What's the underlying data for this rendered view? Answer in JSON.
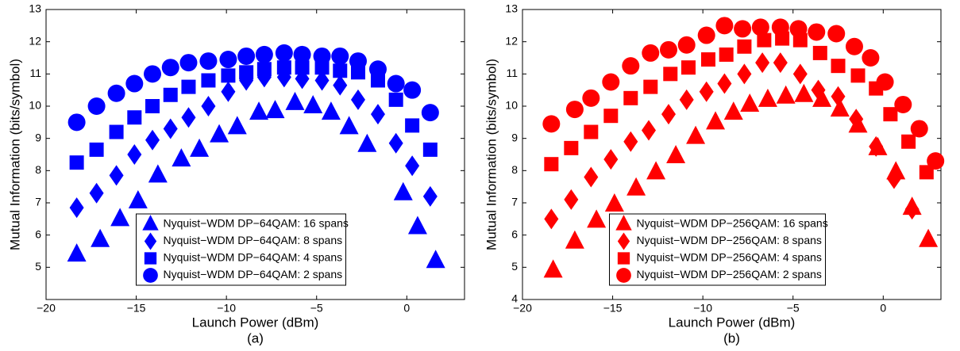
{
  "chart_data": [
    {
      "type": "scatter",
      "caption": "(a)",
      "xlabel": "Launch Power (dBm)",
      "ylabel": "Mutual Information (bits/symbol)",
      "xlim": [
        -20,
        3.2
      ],
      "ylim": [
        4,
        13
      ],
      "xticks": [
        {
          "value": -20,
          "label": "−20"
        },
        {
          "value": -15,
          "label": "−15"
        },
        {
          "value": -10,
          "label": "−10"
        },
        {
          "value": -5,
          "label": "−5"
        },
        0
      ],
      "yticks": [
        5,
        6,
        7,
        8,
        9,
        10,
        11,
        12,
        13
      ],
      "legend": "lower center",
      "series": [
        {
          "name": "Nyquist−WDM DP−64QAM: 16 spans",
          "color": "#0000ff",
          "marker": "triangle",
          "x": [
            -18.3,
            -17.0,
            -15.9,
            -14.9,
            -13.8,
            -12.5,
            -11.5,
            -10.4,
            -9.4,
            -8.2,
            -7.3,
            -6.2,
            -5.2,
            -4.2,
            -3.2,
            -2.2,
            -0.2,
            0.6,
            1.6
          ],
          "values": [
            5.4,
            5.85,
            6.5,
            7.05,
            7.85,
            8.35,
            8.65,
            9.1,
            9.35,
            9.8,
            9.85,
            10.1,
            10.0,
            9.8,
            9.35,
            8.8,
            7.3,
            6.25,
            5.2
          ]
        },
        {
          "name": "Nyquist−WDM DP−64QAM: 8 spans",
          "color": "#0000ff",
          "marker": "diamond",
          "x": [
            -18.3,
            -17.2,
            -16.1,
            -15.1,
            -14.1,
            -13.1,
            -12.1,
            -11.0,
            -9.9,
            -8.9,
            -7.9,
            -6.8,
            -5.8,
            -4.7,
            -3.7,
            -2.7,
            -1.6,
            -0.6,
            0.3,
            1.3
          ],
          "values": [
            6.85,
            7.3,
            7.85,
            8.5,
            8.95,
            9.3,
            9.65,
            10.0,
            10.45,
            10.8,
            10.9,
            10.9,
            10.85,
            10.8,
            10.65,
            10.2,
            9.75,
            8.85,
            8.15,
            7.2
          ]
        },
        {
          "name": "Nyquist−WDM DP−64QAM: 4 spans",
          "color": "#0000ff",
          "marker": "square",
          "x": [
            -18.3,
            -17.2,
            -16.1,
            -15.1,
            -14.1,
            -13.1,
            -12.1,
            -11.0,
            -9.9,
            -8.9,
            -7.9,
            -6.8,
            -5.8,
            -4.7,
            -3.7,
            -2.7,
            -1.6,
            -0.6,
            0.3,
            1.3
          ],
          "values": [
            8.25,
            8.65,
            9.2,
            9.65,
            10.0,
            10.35,
            10.6,
            10.8,
            10.95,
            11.05,
            11.15,
            11.2,
            11.2,
            11.2,
            11.1,
            11.05,
            10.8,
            10.2,
            9.4,
            8.65
          ]
        },
        {
          "name": "Nyquist−WDM DP−64QAM: 2 spans",
          "color": "#0000ff",
          "marker": "circle",
          "x": [
            -18.3,
            -17.2,
            -16.1,
            -15.1,
            -14.1,
            -13.1,
            -12.1,
            -11.0,
            -9.9,
            -8.9,
            -7.9,
            -6.8,
            -5.8,
            -4.7,
            -3.7,
            -2.7,
            -1.6,
            -0.6,
            0.3,
            1.3
          ],
          "values": [
            9.5,
            10.0,
            10.4,
            10.7,
            11.0,
            11.2,
            11.35,
            11.4,
            11.45,
            11.55,
            11.6,
            11.65,
            11.6,
            11.55,
            11.55,
            11.4,
            11.15,
            10.7,
            10.5,
            9.8
          ]
        }
      ]
    },
    {
      "type": "scatter",
      "caption": "(b)",
      "xlabel": "Launch Power (dBm)",
      "ylabel": "Mutual Information (bits/symbol)",
      "xlim": [
        -20,
        3.2
      ],
      "ylim": [
        4,
        13
      ],
      "xticks": [
        {
          "value": -20,
          "label": "−20"
        },
        {
          "value": -15,
          "label": "−15"
        },
        {
          "value": -10,
          "label": "−10"
        },
        {
          "value": -5,
          "label": "−5"
        },
        0
      ],
      "yticks": [
        4,
        5,
        6,
        7,
        8,
        9,
        10,
        11,
        12,
        13
      ],
      "legend": "lower center",
      "series": [
        {
          "name": "Nyquist−WDM DP−256QAM: 16 spans",
          "color": "#ff0000",
          "marker": "triangle",
          "x": [
            -18.3,
            -17.1,
            -15.9,
            -14.9,
            -13.7,
            -12.6,
            -11.5,
            -10.4,
            -9.3,
            -8.3,
            -7.4,
            -6.4,
            -5.4,
            -4.4,
            -3.4,
            -2.4,
            -1.4,
            -0.3,
            0.7,
            1.6,
            2.5
          ],
          "values": [
            4.9,
            5.8,
            6.45,
            6.95,
            7.45,
            7.95,
            8.45,
            9.05,
            9.5,
            9.8,
            10.05,
            10.2,
            10.3,
            10.35,
            10.2,
            9.9,
            9.4,
            8.7,
            7.95,
            6.85,
            5.85
          ]
        },
        {
          "name": "Nyquist−WDM DP−256QAM: 8 spans",
          "color": "#ff0000",
          "marker": "diamond",
          "x": [
            -18.4,
            -17.3,
            -16.2,
            -15.1,
            -14.0,
            -13.0,
            -11.9,
            -10.9,
            -9.8,
            -8.8,
            -7.7,
            -6.7,
            -5.7,
            -4.6,
            -3.6,
            -2.5,
            -1.5,
            -0.4,
            0.6,
            1.6
          ],
          "values": [
            6.5,
            7.1,
            7.8,
            8.35,
            8.9,
            9.25,
            9.75,
            10.2,
            10.45,
            10.7,
            11.0,
            11.35,
            11.35,
            11.0,
            10.5,
            10.3,
            9.6,
            8.75,
            7.75,
            6.8
          ]
        },
        {
          "name": "Nyquist−WDM DP−256QAM: 4 spans",
          "color": "#ff0000",
          "marker": "square",
          "x": [
            -18.4,
            -17.3,
            -16.2,
            -15.1,
            -14.0,
            -12.9,
            -11.8,
            -10.8,
            -9.7,
            -8.7,
            -7.7,
            -6.6,
            -5.6,
            -4.6,
            -3.5,
            -2.5,
            -1.4,
            -0.4,
            0.4,
            1.4,
            2.4
          ],
          "values": [
            8.2,
            8.7,
            9.2,
            9.7,
            10.25,
            10.6,
            11.0,
            11.2,
            11.45,
            11.6,
            11.85,
            12.05,
            12.1,
            12.05,
            11.65,
            11.25,
            10.95,
            10.55,
            9.75,
            8.9,
            7.95
          ]
        },
        {
          "name": "Nyquist−WDM DP−256QAM: 2 spans",
          "color": "#ff0000",
          "marker": "circle",
          "x": [
            -18.4,
            -17.1,
            -16.2,
            -15.1,
            -14.0,
            -12.9,
            -11.9,
            -10.9,
            -9.8,
            -8.8,
            -7.8,
            -6.8,
            -5.7,
            -4.7,
            -3.7,
            -2.6,
            -1.6,
            -0.7,
            0.1,
            1.1,
            2.0,
            2.9
          ],
          "values": [
            9.45,
            9.9,
            10.25,
            10.75,
            11.25,
            11.65,
            11.75,
            11.9,
            12.2,
            12.5,
            12.4,
            12.45,
            12.45,
            12.4,
            12.3,
            12.25,
            11.85,
            11.5,
            10.75,
            10.05,
            9.3,
            8.3
          ]
        }
      ]
    }
  ]
}
